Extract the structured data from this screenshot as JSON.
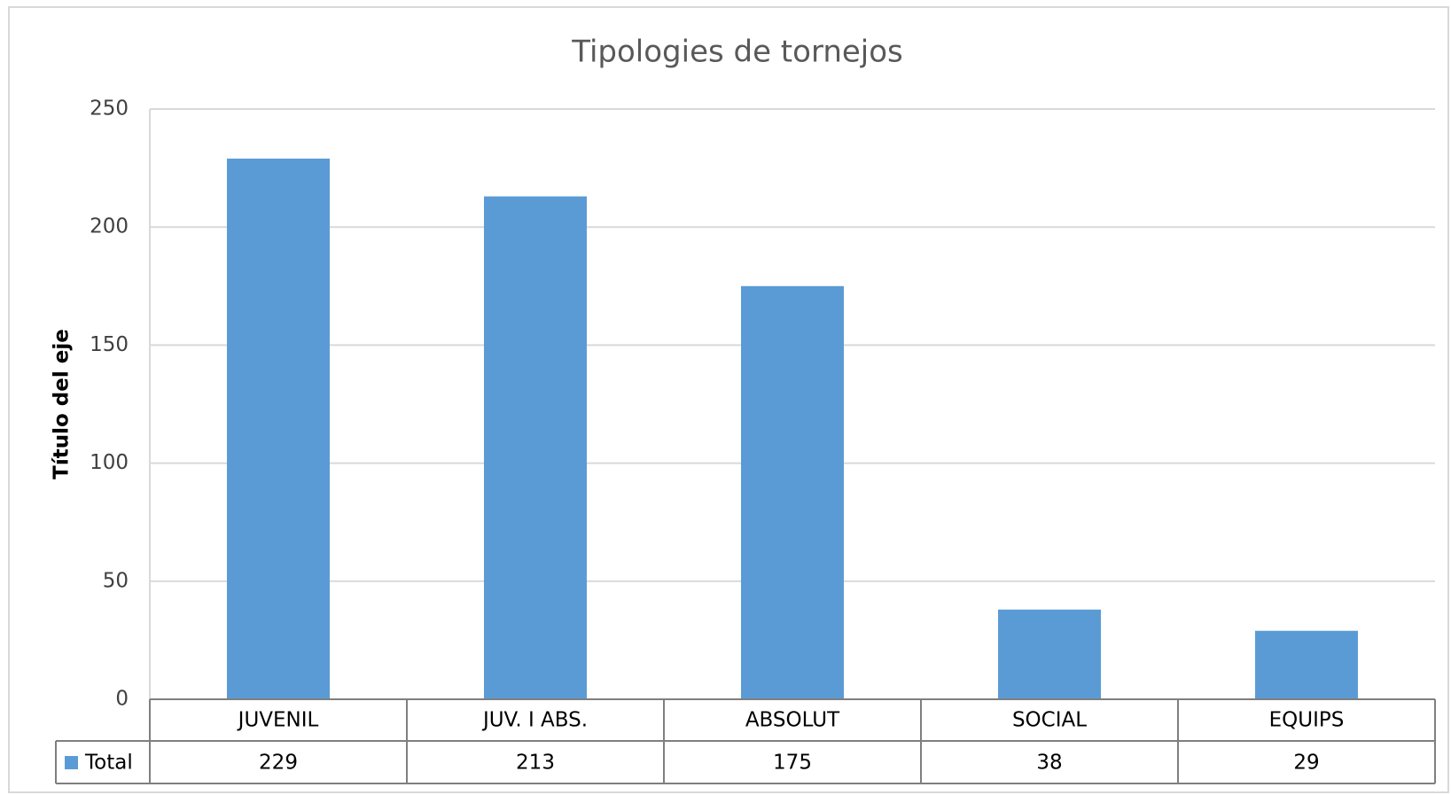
{
  "chart_data": {
    "type": "bar",
    "title": "Tipologies de tornejos",
    "y_label": "Título del eje",
    "categories": [
      "JUVENIL",
      "JUV. I ABS.",
      "ABSOLUT",
      "SOCIAL",
      "EQUIPS"
    ],
    "series": [
      {
        "name": "Total",
        "color": "#5b9bd5",
        "values": [
          229,
          213,
          175,
          38,
          29
        ]
      }
    ],
    "ylim": [
      0,
      250
    ],
    "yticks": [
      0,
      50,
      100,
      150,
      200,
      250
    ],
    "grid": true,
    "data_table": true
  }
}
